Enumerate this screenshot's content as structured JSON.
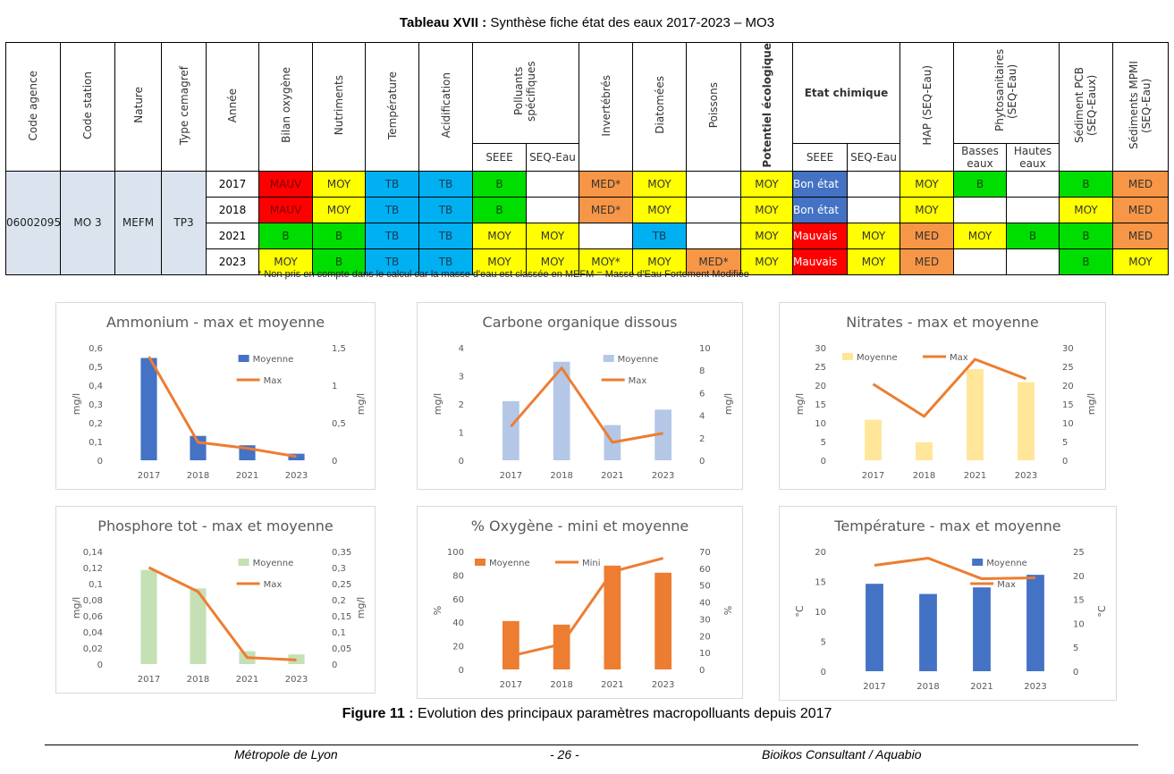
{
  "table_caption": {
    "label": "Tableau XVII :",
    "text": " Synthèse fiche état des eaux 2017-2023 – MO3"
  },
  "table": {
    "headers": {
      "code_agence": "Code agence",
      "code_station": "Code station",
      "nature": "Nature",
      "type_cemagref": "Type cemagref",
      "annee": "Année",
      "bilan_oxygene": "Bilan oxygène",
      "nutriments": "Nutriments",
      "temperature": "Température",
      "acidification": "Acidification",
      "polluants": "Polluants spécifiques",
      "invertebres": "Invertébrés",
      "diatomees": "Diatomées",
      "poissons": "Poissons",
      "potentiel": "Potentiel écologique",
      "etat_chimique": "Etat chimique",
      "hap": "HAP (SEQ-Eau)",
      "phyto": "Phytosanitaires (SEQ-Eau)",
      "pcb": "Sédiment PCB (SEQ-Eaux)",
      "mpmi": "Sédiments MPMI (SEQ-Eau)",
      "seee": "SEEE",
      "seq_eau": "SEQ-Eau",
      "basses_eaux": "Basses eaux",
      "hautes_eaux": "Hautes eaux"
    },
    "ids": {
      "code_agence": "06002095",
      "code_station": "MO 3",
      "nature": "MEFM",
      "type": "TP3"
    },
    "rows": [
      {
        "year": "2017",
        "cells": [
          [
            "MAUV",
            "red"
          ],
          [
            "MOY",
            "yellow"
          ],
          [
            "TB",
            "blue"
          ],
          [
            "TB",
            "blue"
          ],
          [
            "B",
            "green"
          ],
          [
            "",
            "white"
          ],
          [
            "MED*",
            "orange"
          ],
          [
            "MOY",
            "yellow"
          ],
          [
            "",
            "white"
          ],
          [
            "MOY",
            "yellow"
          ],
          [
            "Bon état",
            "navy"
          ],
          [
            "",
            "white"
          ],
          [
            "MOY",
            "yellow"
          ],
          [
            "B",
            "green"
          ],
          [
            "",
            "white"
          ],
          [
            "B",
            "green"
          ],
          [
            "MED",
            "orange"
          ]
        ]
      },
      {
        "year": "2018",
        "cells": [
          [
            "MAUV",
            "red"
          ],
          [
            "MOY",
            "yellow"
          ],
          [
            "TB",
            "blue"
          ],
          [
            "TB",
            "blue"
          ],
          [
            "B",
            "green"
          ],
          [
            "",
            "white"
          ],
          [
            "MED*",
            "orange"
          ],
          [
            "MOY",
            "yellow"
          ],
          [
            "",
            "white"
          ],
          [
            "MOY",
            "yellow"
          ],
          [
            "Bon état",
            "navy"
          ],
          [
            "",
            "white"
          ],
          [
            "MOY",
            "yellow"
          ],
          [
            "",
            "white"
          ],
          [
            "",
            "white"
          ],
          [
            "MOY",
            "yellow"
          ],
          [
            "MED",
            "orange"
          ]
        ]
      },
      {
        "year": "2021",
        "cells": [
          [
            "B",
            "green"
          ],
          [
            "B",
            "green"
          ],
          [
            "TB",
            "blue"
          ],
          [
            "TB",
            "blue"
          ],
          [
            "MOY",
            "yellow"
          ],
          [
            "MOY",
            "yellow"
          ],
          [
            "",
            "white"
          ],
          [
            "TB",
            "blue"
          ],
          [
            "",
            "white"
          ],
          [
            "MOY",
            "yellow"
          ],
          [
            "Mauvais",
            "red2"
          ],
          [
            "MOY",
            "yellow"
          ],
          [
            "MED",
            "orange"
          ],
          [
            "MOY",
            "yellow"
          ],
          [
            "B",
            "green"
          ],
          [
            "B",
            "green"
          ],
          [
            "MED",
            "orange"
          ]
        ]
      },
      {
        "year": "2023",
        "cells": [
          [
            "MOY",
            "yellow"
          ],
          [
            "B",
            "green"
          ],
          [
            "TB",
            "blue"
          ],
          [
            "TB",
            "blue"
          ],
          [
            "MOY",
            "yellow"
          ],
          [
            "MOY",
            "yellow"
          ],
          [
            "MOY*",
            "yellow"
          ],
          [
            "MOY",
            "yellow"
          ],
          [
            "MED*",
            "orange"
          ],
          [
            "MOY",
            "yellow"
          ],
          [
            "Mauvais",
            "red2"
          ],
          [
            "MOY",
            "yellow"
          ],
          [
            "MED",
            "orange"
          ],
          [
            "",
            "white"
          ],
          [
            "",
            "white"
          ],
          [
            "B",
            "green"
          ],
          [
            "MOY",
            "yellow"
          ]
        ]
      }
    ],
    "note": "* Non pris en compte dans le calcul car la masse d'eau est classée en MEFM = Masse d'Eau Fortement Modifiée"
  },
  "chart_data": [
    {
      "type": "bar+line",
      "title": "Ammonium  - max et moyenne",
      "categories": [
        "2017",
        "2018",
        "2021",
        "2023"
      ],
      "ylabel": "mg/l",
      "y2label": "mg/l",
      "ylim": [
        0,
        0.6
      ],
      "y2lim": [
        0,
        1.5
      ],
      "yticks": [
        "0",
        "0,1",
        "0,2",
        "0,3",
        "0,4",
        "0,5",
        "0,6"
      ],
      "y2ticks": [
        "0",
        "0,5",
        "1",
        "1,5"
      ],
      "bar_color": "#4472c4",
      "line_color": "#ed7d31",
      "legend": "top-right",
      "series": [
        {
          "name": "Moyenne",
          "kind": "bar",
          "values": [
            0.545,
            0.13,
            0.08,
            0.035
          ]
        },
        {
          "name": "Max",
          "kind": "line",
          "values": [
            1.38,
            0.24,
            0.16,
            0.05
          ]
        }
      ]
    },
    {
      "type": "bar+line",
      "title": "Carbone organique dissous",
      "categories": [
        "2017",
        "2018",
        "2021",
        "2023"
      ],
      "ylabel": "mg/l",
      "y2label": "mg/l",
      "ylim": [
        0,
        4
      ],
      "y2lim": [
        0,
        10
      ],
      "yticks": [
        "0",
        "1",
        "2",
        "3",
        "4"
      ],
      "y2ticks": [
        "0",
        "2",
        "4",
        "6",
        "8",
        "10"
      ],
      "bar_color": "#b4c7e7",
      "line_color": "#ed7d31",
      "legend": "top-right",
      "series": [
        {
          "name": "Moyenne",
          "kind": "bar",
          "values": [
            2.1,
            3.5,
            1.25,
            1.8
          ]
        },
        {
          "name": "Max",
          "kind": "line",
          "values": [
            3.0,
            8.2,
            1.6,
            2.4
          ]
        }
      ]
    },
    {
      "type": "bar+line",
      "title": "Nitrates - max et moyenne",
      "categories": [
        "2017",
        "2018",
        "2021",
        "2023"
      ],
      "ylabel": "mg/l",
      "y2label": "mg/l",
      "ylim": [
        0,
        30
      ],
      "y2lim": [
        0,
        30
      ],
      "yticks": [
        "0",
        "5",
        "10",
        "15",
        "20",
        "25",
        "30"
      ],
      "y2ticks": [
        "0",
        "5",
        "10",
        "15",
        "20",
        "25",
        "30"
      ],
      "bar_color": "#ffe699",
      "line_color": "#ed7d31",
      "legend": "top",
      "series": [
        {
          "name": "Moyenne",
          "kind": "bar",
          "values": [
            10.8,
            4.8,
            24.3,
            20.8
          ]
        },
        {
          "name": "Max",
          "kind": "line",
          "values": [
            20.3,
            11.7,
            26.9,
            21.7
          ]
        }
      ]
    },
    {
      "type": "bar+line",
      "title": "Phosphore tot - max et moyenne",
      "categories": [
        "2017",
        "2018",
        "2021",
        "2023"
      ],
      "ylabel": "mg/l",
      "y2label": "mg/l",
      "ylim": [
        0,
        0.14
      ],
      "y2lim": [
        0,
        0.35
      ],
      "yticks": [
        "0",
        "0,02",
        "0,04",
        "0,06",
        "0,08",
        "0,1",
        "0,12",
        "0,14"
      ],
      "y2ticks": [
        "0",
        "0,05",
        "0,1",
        "0,15",
        "0,2",
        "0,25",
        "0,3",
        "0,35"
      ],
      "bar_color": "#c5e0b4",
      "line_color": "#ed7d31",
      "legend": "top-right",
      "series": [
        {
          "name": "Moyenne",
          "kind": "bar",
          "values": [
            0.117,
            0.094,
            0.016,
            0.012
          ]
        },
        {
          "name": "Max",
          "kind": "line",
          "values": [
            0.3,
            0.225,
            0.02,
            0.013
          ]
        }
      ]
    },
    {
      "type": "bar+line",
      "title": "% Oxygène - mini et moyenne",
      "categories": [
        "2017",
        "2018",
        "2021",
        "2023"
      ],
      "ylabel": "%",
      "y2label": "%",
      "ylim": [
        0,
        100
      ],
      "y2lim": [
        0,
        70
      ],
      "yticks": [
        "0",
        "20",
        "40",
        "60",
        "80",
        "100"
      ],
      "y2ticks": [
        "0",
        "10",
        "20",
        "30",
        "40",
        "50",
        "60",
        "70"
      ],
      "bar_color": "#ed7d31",
      "line_color": "#ed7d31",
      "legend": "top-left",
      "series": [
        {
          "name": "Moyenne",
          "kind": "bar",
          "values": [
            41,
            38,
            88,
            82
          ]
        },
        {
          "name": "Mini",
          "kind": "line",
          "values": [
            8,
            15,
            58,
            66
          ]
        }
      ]
    },
    {
      "type": "bar+line",
      "title": "Température - max et moyenne",
      "categories": [
        "2017",
        "2018",
        "2021",
        "2023"
      ],
      "ylabel": "°C",
      "y2label": "°C",
      "ylim": [
        0,
        20
      ],
      "y2lim": [
        0,
        25
      ],
      "yticks": [
        "0",
        "5",
        "10",
        "15",
        "20"
      ],
      "y2ticks": [
        "0",
        "5",
        "10",
        "15",
        "20",
        "25"
      ],
      "bar_color": "#4472c4",
      "line_color": "#ed7d31",
      "legend": "top-right",
      "series": [
        {
          "name": "Moyenne",
          "kind": "bar",
          "values": [
            14.6,
            12.9,
            14.0,
            16.1
          ]
        },
        {
          "name": "Max",
          "kind": "line",
          "values": [
            22.1,
            23.6,
            19.3,
            19.5
          ]
        }
      ]
    }
  ],
  "figure_caption": {
    "label": "Figure 11 :",
    "text": " Evolution des principaux paramètres macropolluants depuis 2017"
  },
  "footer": {
    "left": "Métropole de Lyon",
    "center": "- 26 -",
    "right": "Bioikos Consultant / Aquabio"
  }
}
